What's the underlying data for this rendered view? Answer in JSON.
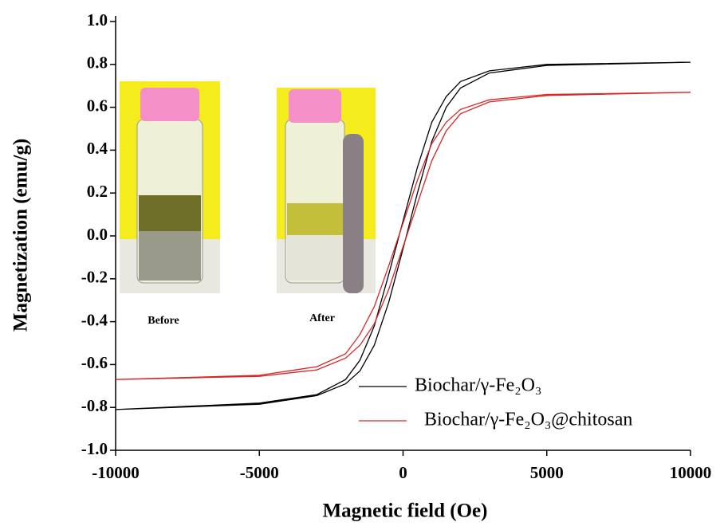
{
  "chart_data": {
    "type": "line",
    "xlabel": "Magnetic field (Oe)",
    "ylabel": "Magnetization (emu/g)",
    "xlim": [
      -10000,
      10000
    ],
    "xticks": [
      -10000,
      -5000,
      0,
      5000,
      10000
    ],
    "ylim": [
      -1,
      1
    ],
    "yticks": [
      {
        "value": -1,
        "label": "-1.0"
      },
      -0.8,
      -0.6,
      -0.4,
      -0.2,
      {
        "value": 0,
        "label": "0.0"
      },
      0.2,
      0.4,
      0.6,
      0.8,
      {
        "value": 1,
        "label": "1.0"
      }
    ],
    "legend": "lower right",
    "annotations": [
      "Before",
      "After"
    ],
    "series": [
      {
        "name": "Biochar/γ-Fe₂O₃",
        "color": "#000000",
        "x": [
          -10000,
          -5000,
          -3000,
          -2000,
          -1500,
          -1000,
          -500,
          0,
          500,
          1000,
          1500,
          2000,
          3000,
          5000,
          10000,
          5000,
          3000,
          2000,
          1500,
          1000,
          500,
          0,
          -500,
          -1000,
          -1500,
          -2000,
          -3000,
          -5000,
          -10000
        ],
        "values": [
          -0.81,
          -0.785,
          -0.745,
          -0.69,
          -0.63,
          -0.51,
          -0.31,
          -0.06,
          0.2,
          0.44,
          0.6,
          0.69,
          0.76,
          0.795,
          0.81,
          0.8,
          0.77,
          0.72,
          0.65,
          0.53,
          0.32,
          0.07,
          -0.18,
          -0.42,
          -0.58,
          -0.67,
          -0.74,
          -0.78,
          -0.81
        ]
      },
      {
        "name": "Biochar/γ-Fe₂O₃@chitosan",
        "color": "#d62728",
        "x": [
          -10000,
          -5000,
          -3000,
          -2000,
          -1500,
          -1000,
          -500,
          0,
          500,
          1000,
          1500,
          2000,
          3000,
          5000,
          10000,
          5000,
          3000,
          2000,
          1500,
          1000,
          500,
          0,
          -500,
          -1000,
          -1500,
          -2000,
          -3000,
          -5000,
          -10000
        ],
        "values": [
          -0.67,
          -0.655,
          -0.625,
          -0.57,
          -0.51,
          -0.41,
          -0.25,
          -0.05,
          0.15,
          0.35,
          0.49,
          0.57,
          0.625,
          0.655,
          0.67,
          0.66,
          0.635,
          0.59,
          0.53,
          0.43,
          0.26,
          0.06,
          -0.14,
          -0.33,
          -0.46,
          -0.55,
          -0.61,
          -0.65,
          -0.67
        ]
      }
    ]
  }
}
